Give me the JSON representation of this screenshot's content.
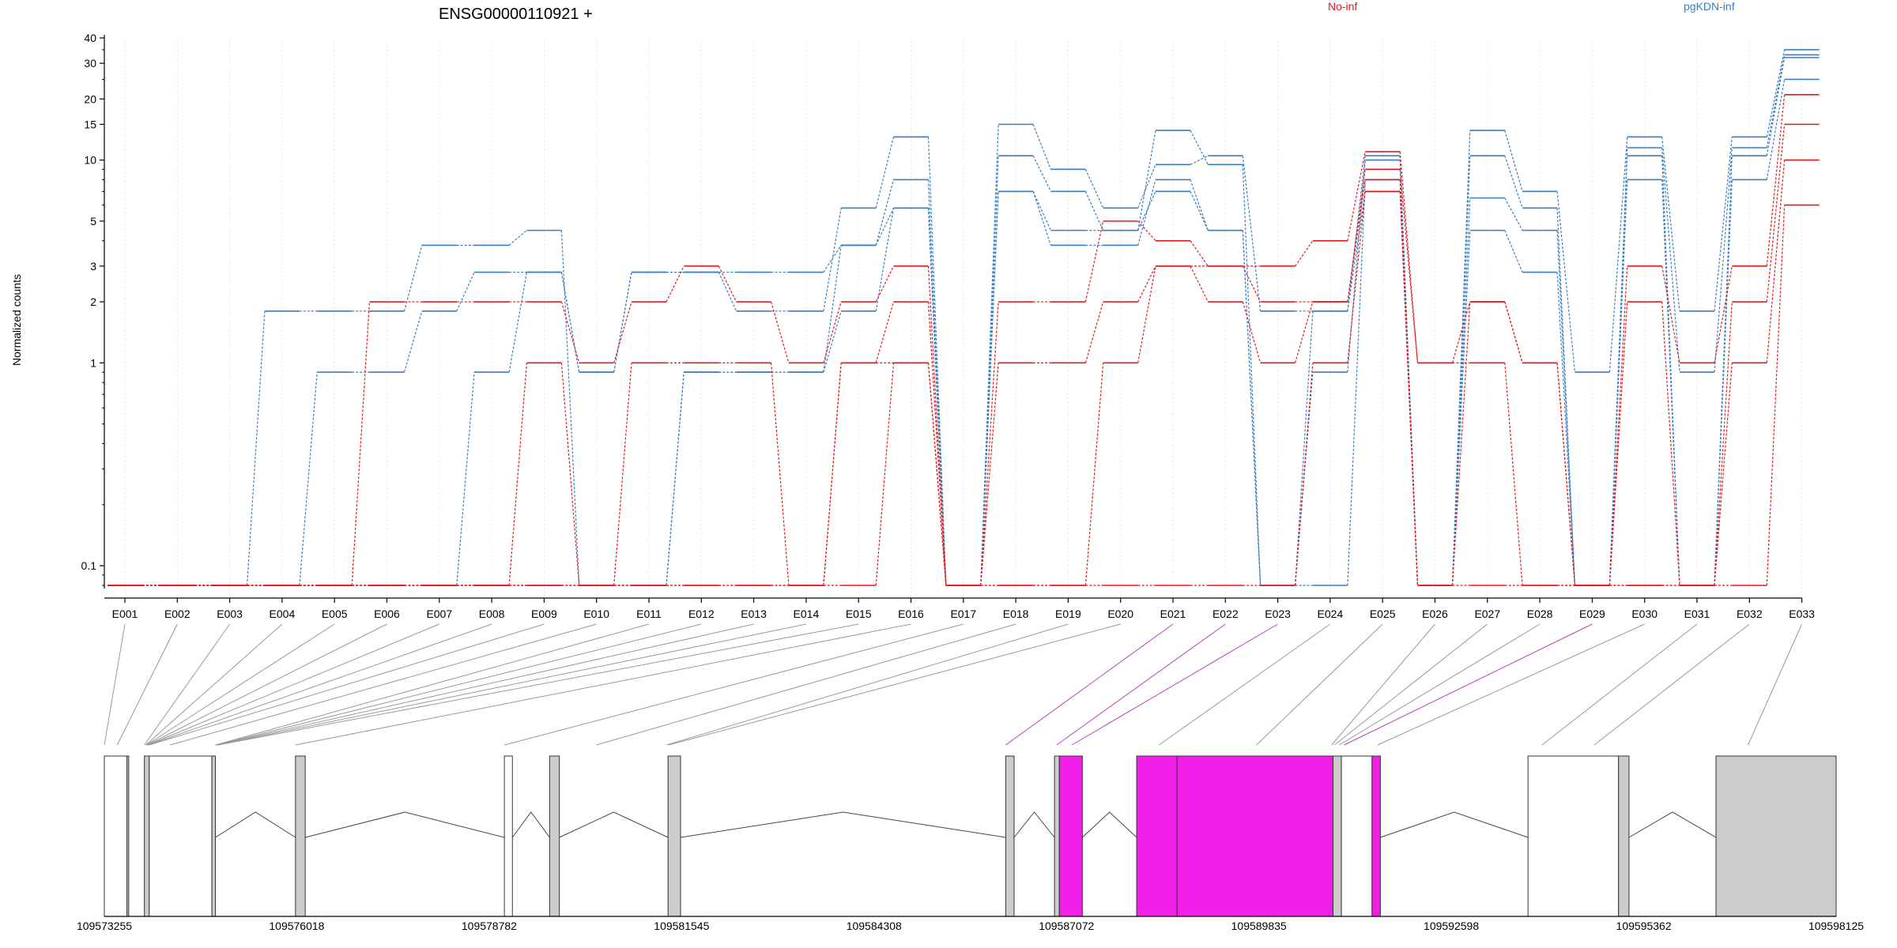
{
  "chart_data": {
    "type": "line",
    "title": "ENSG00000110921 +",
    "ylabel": "Normalized counts",
    "xlabel": "",
    "y_scale": "log",
    "ylim": [
      0.08,
      40
    ],
    "y_ticks": [
      0.1,
      1,
      2,
      3,
      5,
      10,
      15,
      20,
      30,
      40
    ],
    "categories": [
      "E001",
      "E002",
      "E003",
      "E004",
      "E005",
      "E006",
      "E007",
      "E008",
      "E009",
      "E010",
      "E011",
      "E012",
      "E013",
      "E014",
      "E015",
      "E016",
      "E017",
      "E018",
      "E019",
      "E020",
      "E021",
      "E022",
      "E023",
      "E024",
      "E025",
      "E026",
      "E027",
      "E028",
      "E029",
      "E030",
      "E031",
      "E032",
      "E033"
    ],
    "grid": "vertical",
    "legend": [
      {
        "label": "No-inf",
        "color": "#e31a1c",
        "position": "top"
      },
      {
        "label": "pgKDN-inf",
        "color": "#3a7ec0",
        "position": "top-right"
      }
    ],
    "baseline_value": 0.08,
    "series": [
      {
        "group": "pgKDN-inf",
        "color": "#3a7ec0",
        "values": [
          0.08,
          0.08,
          0.08,
          1.8,
          1.8,
          1.8,
          3.8,
          3.8,
          4.5,
          0.08,
          0.08,
          0.9,
          0.9,
          0.9,
          1.8,
          5.8,
          0.08,
          15,
          9,
          5.8,
          9.5,
          10.5,
          1.8,
          1.8,
          10.5,
          0.08,
          14,
          7,
          0.9,
          13,
          1.8,
          13,
          35
        ]
      },
      {
        "group": "pgKDN-inf",
        "color": "#3a7ec0",
        "values": [
          0.08,
          0.08,
          0.08,
          0.08,
          0.9,
          0.9,
          1.8,
          2.8,
          2.8,
          0.9,
          2.8,
          2.8,
          2.8,
          2.8,
          3.8,
          8,
          0.08,
          10.5,
          7,
          4.5,
          14,
          9.5,
          0.08,
          0.9,
          10,
          0.08,
          10.5,
          5.8,
          0.08,
          11.5,
          0.9,
          11.5,
          33
        ]
      },
      {
        "group": "pgKDN-inf",
        "color": "#3a7ec0",
        "values": [
          0.08,
          0.08,
          0.08,
          0.08,
          0.08,
          0.08,
          0.08,
          0.9,
          2.8,
          0.9,
          2.8,
          2.8,
          1.8,
          1.8,
          5.8,
          13,
          0.08,
          7,
          4.5,
          4.5,
          7,
          4.5,
          0.08,
          1.8,
          7,
          0.08,
          6.5,
          4.5,
          0.08,
          10.5,
          0.08,
          8,
          25
        ]
      },
      {
        "group": "pgKDN-inf",
        "color": "#3a7ec0",
        "values": [
          0.08,
          0.08,
          0.08,
          0.08,
          0.08,
          0.08,
          0.08,
          0.08,
          0.08,
          0.08,
          0.08,
          0.9,
          0.9,
          0.9,
          3.8,
          5.8,
          0.08,
          7,
          3.8,
          3.8,
          8,
          4.5,
          0.08,
          0.08,
          8,
          0.08,
          4.5,
          2.8,
          0.08,
          8,
          0.08,
          10.5,
          32
        ]
      },
      {
        "group": "No-inf",
        "color": "#e31a1c",
        "values": [
          0.08,
          0.08,
          0.08,
          0.08,
          0.08,
          2,
          2,
          2,
          2,
          1,
          2,
          3,
          2,
          1,
          2,
          3,
          0.08,
          2,
          2,
          5,
          4,
          3,
          3,
          4,
          11,
          1,
          2,
          1,
          0.08,
          3,
          1,
          3,
          21
        ]
      },
      {
        "group": "No-inf",
        "color": "#e31a1c",
        "values": [
          0.08,
          0.08,
          0.08,
          0.08,
          0.08,
          0.08,
          0.08,
          0.08,
          1,
          0.08,
          1,
          1,
          1,
          0.08,
          1,
          2,
          0.08,
          1,
          1,
          2,
          3,
          2,
          1,
          2,
          9,
          1,
          1,
          0.08,
          0.08,
          2,
          0.08,
          2,
          15
        ]
      },
      {
        "group": "No-inf",
        "color": "#e31a1c",
        "values": [
          0.08,
          0.08,
          0.08,
          0.08,
          0.08,
          0.08,
          0.08,
          0.08,
          0.08,
          0.08,
          0.08,
          0.08,
          0.08,
          0.08,
          1,
          1,
          0.08,
          0.08,
          0.08,
          1,
          3,
          3,
          2,
          2,
          8,
          0.08,
          2,
          1,
          0.08,
          0.08,
          0.08,
          1,
          10
        ]
      },
      {
        "group": "No-inf",
        "color": "#e31a1c",
        "values": [
          0.08,
          0.08,
          0.08,
          0.08,
          0.08,
          0.08,
          0.08,
          0.08,
          0.08,
          0.08,
          0.08,
          0.08,
          0.08,
          0.08,
          0.08,
          1,
          0.08,
          0.08,
          0.08,
          0.08,
          0.08,
          0.08,
          0.08,
          1,
          7,
          0.08,
          0.08,
          0.08,
          0.08,
          0.08,
          0.08,
          0.08,
          6
        ]
      }
    ],
    "genome_axis": {
      "ticks": [
        "109573255",
        "109576018",
        "109578782",
        "109581545",
        "109584308",
        "109587072",
        "109589835",
        "109592598",
        "109595362",
        "109598125"
      ],
      "min": 109573255,
      "max": 109598125
    },
    "gene_model": {
      "exon_blocks": [
        {
          "start": 109573255,
          "end": 109573580,
          "fill": "#ffffff"
        },
        {
          "start": 109573580,
          "end": 109573605,
          "fill": "#cccccc"
        },
        {
          "start": 109573830,
          "end": 109573900,
          "fill": "#cccccc"
        },
        {
          "start": 109573900,
          "end": 109574800,
          "fill": "#ffffff"
        },
        {
          "start": 109574800,
          "end": 109574850,
          "fill": "#cccccc"
        },
        {
          "start": 109576000,
          "end": 109576140,
          "fill": "#cccccc"
        },
        {
          "start": 109579000,
          "end": 109579115,
          "fill": "#ffffff"
        },
        {
          "start": 109579650,
          "end": 109579790,
          "fill": "#cccccc"
        },
        {
          "start": 109581350,
          "end": 109581530,
          "fill": "#cccccc"
        },
        {
          "start": 109586200,
          "end": 109586320,
          "fill": "#cccccc"
        },
        {
          "start": 109586900,
          "end": 109586970,
          "fill": "#cccccc"
        },
        {
          "start": 109586970,
          "end": 109587300,
          "fill": "#f020e8"
        },
        {
          "start": 109588080,
          "end": 109588660,
          "fill": "#f020e8"
        },
        {
          "start": 109588660,
          "end": 109590900,
          "fill": "#f020e8"
        },
        {
          "start": 109590900,
          "end": 109591020,
          "fill": "#cccccc"
        },
        {
          "start": 109591020,
          "end": 109591460,
          "fill": "#ffffff"
        },
        {
          "start": 109591460,
          "end": 109591580,
          "fill": "#f020e8"
        },
        {
          "start": 109593700,
          "end": 109595000,
          "fill": "#ffffff"
        },
        {
          "start": 109595000,
          "end": 109595150,
          "fill": "#cccccc"
        },
        {
          "start": 109596400,
          "end": 109598125,
          "fill": "#cccccc"
        }
      ],
      "introns": [
        [
          109574850,
          109576000
        ],
        [
          109576140,
          109579000
        ],
        [
          109579115,
          109579650
        ],
        [
          109579790,
          109581350
        ],
        [
          109581530,
          109586200
        ],
        [
          109586320,
          109586900
        ],
        [
          109587300,
          109588080
        ],
        [
          109591580,
          109593700
        ],
        [
          109595150,
          109596400
        ]
      ],
      "connector_targets": [
        109573255,
        109573440,
        109573830,
        109573850,
        109573860,
        109573870,
        109573880,
        109573890,
        109573900,
        109574200,
        109574850,
        109574860,
        109574870,
        109574880,
        109574890,
        109576000,
        109579000,
        109580320,
        109581330,
        109581360,
        109586200,
        109586930,
        109587150,
        109588400,
        109589800,
        109590880,
        109590920,
        109590990,
        109591060,
        109591540,
        109593900,
        109594650,
        109596860
      ],
      "highlight_connectors": [
        20,
        21,
        22,
        28
      ]
    }
  }
}
